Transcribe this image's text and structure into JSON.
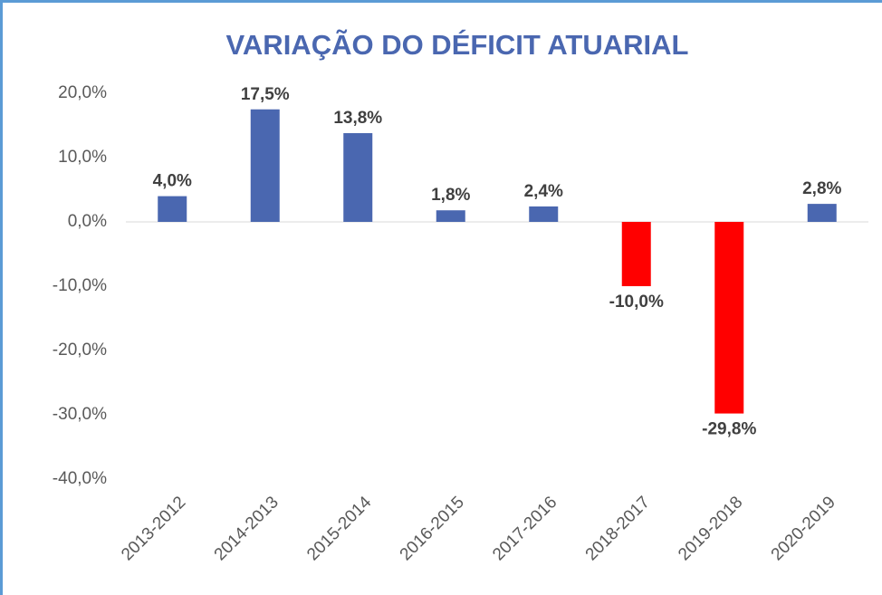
{
  "chart_data": {
    "type": "bar",
    "title": "VARIAÇÃO DO DÉFICIT ATUARIAL",
    "categories": [
      "2013-2012",
      "2014-2013",
      "2015-2014",
      "2016-2015",
      "2017-2016",
      "2018-2017",
      "2019-2018",
      "2020-2019"
    ],
    "values": [
      4.0,
      17.5,
      13.8,
      1.8,
      2.4,
      -10.0,
      -29.8,
      2.8
    ],
    "value_labels": [
      "4,0%",
      "17,5%",
      "13,8%",
      "1,8%",
      "2,4%",
      "-10,0%",
      "-29,8%",
      "2,8%"
    ],
    "colors": [
      "#4a67b0",
      "#4a67b0",
      "#4a67b0",
      "#4a67b0",
      "#4a67b0",
      "#ff0000",
      "#ff0000",
      "#4a67b0"
    ],
    "ylim": [
      -40,
      20
    ],
    "yticks": [
      {
        "value": 20,
        "label": "20,0%"
      },
      {
        "value": 10,
        "label": "10,0%"
      },
      {
        "value": 0,
        "label": "0,0%"
      },
      {
        "value": -10,
        "label": "-10,0%"
      },
      {
        "value": -20,
        "label": "-20,0%"
      },
      {
        "value": -30,
        "label": "-30,0%"
      },
      {
        "value": -40,
        "label": "-40,0%"
      }
    ],
    "grid": false
  }
}
